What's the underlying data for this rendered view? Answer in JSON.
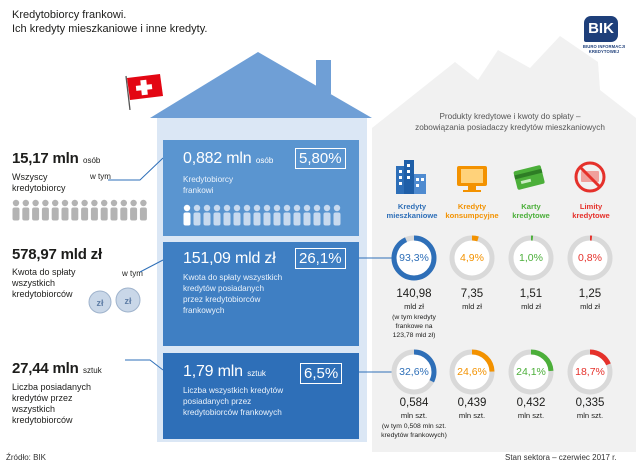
{
  "header": {
    "title_line1": "Kredytobiorcy frankowi.",
    "title_line2": "Ich kredyty mieszkaniowe i inne kredyty."
  },
  "logo": {
    "name": "BIK",
    "subtitle": "BIURO INFORMACJI KREDYTOWEJ"
  },
  "left": {
    "borrowers": {
      "value": "15,17 mln",
      "unit": "osób",
      "desc_line1": "Wszyscy",
      "desc_line2": "kredytobiorcy",
      "w_tym": "w tym"
    },
    "debt": {
      "value": "578,97 mld zł",
      "desc_line1": "Kwota do spłaty",
      "desc_line2": "wszystkich",
      "desc_line3": "kredytobiorców",
      "w_tym": "w tym"
    },
    "loans": {
      "value": "27,44 mln",
      "unit": "sztuk",
      "desc_line1": "Liczba posiadanych",
      "desc_line2": "kredytów przez",
      "desc_line3": "wszystkich",
      "desc_line4": "kredytobiorców"
    }
  },
  "center": {
    "borrowers": {
      "value": "0,882 mln",
      "unit": "osób",
      "pct": "5,80%",
      "desc_line1": "Kredytobiorcy",
      "desc_line2": "frankowi"
    },
    "debt": {
      "value": "151,09 mld zł",
      "pct": "26,1%",
      "desc_line1": "Kwota do spłaty wszystkich",
      "desc_line2": "kredytów posiadanych",
      "desc_line3": "przez kredytobiorców",
      "desc_line4": "frankowych"
    },
    "loans": {
      "value": "1,79 mln",
      "unit": "sztuk",
      "pct": "6,5%",
      "desc_line1": "Liczba wszystkich kredytów",
      "desc_line2": "posiadanych przez",
      "desc_line3": "kredytobiorców frankowych"
    }
  },
  "right": {
    "title_line1": "Produkty kredytowe i kwoty do spłaty –",
    "title_line2": "zobowiązania posiadaczy kredytów mieszkaniowych",
    "categories": [
      {
        "label_line1": "Kredyty",
        "label_line2": "mieszkaniowe",
        "color": "#2e6fb8",
        "icon": "buildings-icon"
      },
      {
        "label_line1": "Kredyty",
        "label_line2": "konsumpcyjne",
        "color": "#f39200",
        "icon": "tv-icon"
      },
      {
        "label_line1": "Karty",
        "label_line2": "kredytowe",
        "color": "#4caf3a",
        "icon": "credit-card-icon"
      },
      {
        "label_line1": "Limity",
        "label_line2": "kredytowe",
        "color": "#e5312b",
        "icon": "limit-icon"
      }
    ],
    "debt_row": [
      {
        "pct": "93,3%",
        "fraction": 0.933,
        "value": "140,98",
        "unit": "mld zł",
        "note_line1": "(w tym kredyty",
        "note_line2": "frankowe na",
        "note_line3": "123,78 mld zł)"
      },
      {
        "pct": "4,9%",
        "fraction": 0.049,
        "value": "7,35",
        "unit": "mld zł"
      },
      {
        "pct": "1,0%",
        "fraction": 0.01,
        "value": "1,51",
        "unit": "mld zł"
      },
      {
        "pct": "0,8%",
        "fraction": 0.008,
        "value": "1,25",
        "unit": "mld zł"
      }
    ],
    "count_row": [
      {
        "pct": "32,6%",
        "fraction": 0.326,
        "value": "0,584",
        "unit": "mln szt.",
        "note_line1": "(w tym 0,508 mln szt.",
        "note_line2": "kredytów frankowych)"
      },
      {
        "pct": "24,6%",
        "fraction": 0.246,
        "value": "0,439",
        "unit": "mln szt."
      },
      {
        "pct": "24,1%",
        "fraction": 0.241,
        "value": "0,432",
        "unit": "mln szt."
      },
      {
        "pct": "18,7%",
        "fraction": 0.187,
        "value": "0,335",
        "unit": "mln szt."
      }
    ]
  },
  "footer": {
    "source": "Źródło: BIK",
    "state": "Stan sektora – czerwiec 2017 r."
  },
  "colors": {
    "blue_dark": "#2e6fb8",
    "blue_light": "#5a95d0",
    "swiss_red": "#e30613",
    "ring_grey": "#d9d9d9"
  }
}
